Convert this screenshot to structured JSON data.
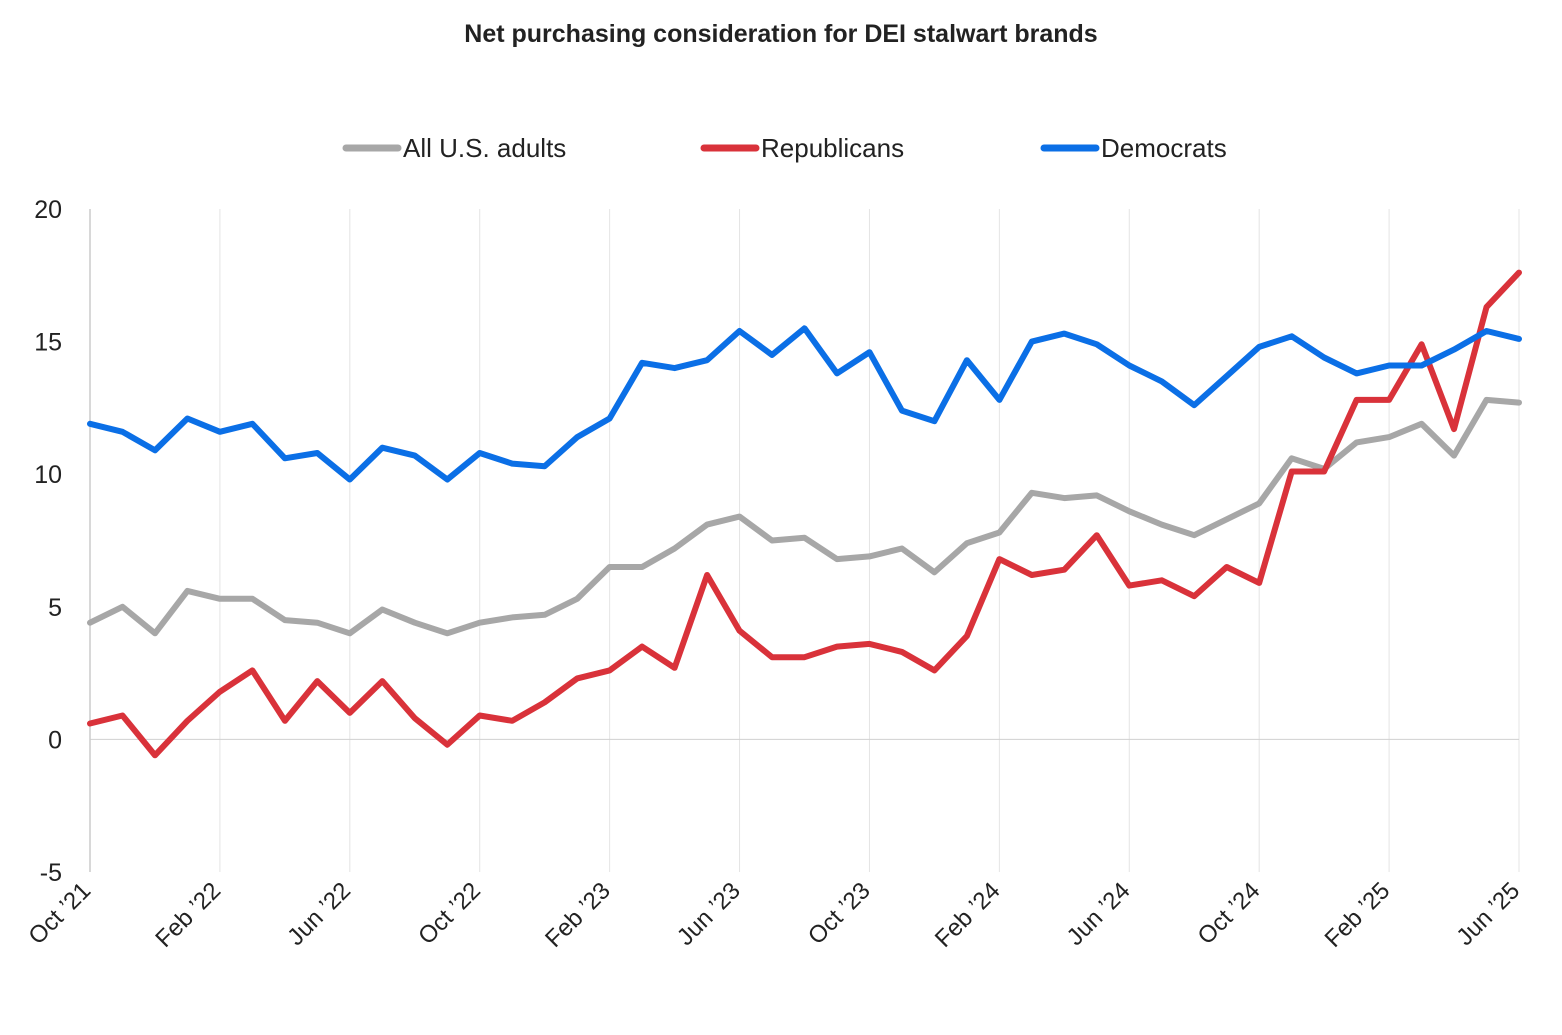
{
  "chart_data": {
    "type": "line",
    "title": "Net purchasing consideration for DEI stalwart brands",
    "xlabel": "",
    "ylabel": "",
    "ylim": [
      -5,
      20
    ],
    "yticks": [
      20,
      15,
      10,
      5,
      0,
      -5
    ],
    "xtick_labels": [
      "Oct ’21",
      "Feb ’22",
      "Jun ’22",
      "Oct ’22",
      "Feb ’23",
      "Jun ’23",
      "Oct ’23",
      "Feb ’24",
      "Jun ’24",
      "Oct ’24",
      "Feb ’25",
      "Jun ’25"
    ],
    "x": [
      "2021-10-01",
      "2021-11-01",
      "2021-12-01",
      "2022-01-01",
      "2022-02-01",
      "2022-03-01",
      "2022-04-01",
      "2022-05-01",
      "2022-06-01",
      "2022-07-01",
      "2022-08-01",
      "2022-09-01",
      "2022-10-01",
      "2022-11-01",
      "2022-12-01",
      "2023-01-01",
      "2023-02-01",
      "2023-03-01",
      "2023-04-01",
      "2023-05-01",
      "2023-06-01",
      "2023-07-01",
      "2023-08-01",
      "2023-09-01",
      "2023-10-01",
      "2023-11-01",
      "2023-12-01",
      "2024-01-01",
      "2024-02-01",
      "2024-03-01",
      "2024-04-01",
      "2024-05-01",
      "2024-06-01",
      "2024-07-01",
      "2024-08-01",
      "2024-09-01",
      "2024-10-01",
      "2024-11-01",
      "2024-12-01",
      "2025-01-01",
      "2025-02-01",
      "2025-03-01",
      "2025-04-01",
      "2025-05-01",
      "2025-06-01"
    ],
    "grid": "vertical",
    "legend_position": "top-center",
    "series": [
      {
        "name": "All U.S. adults",
        "color": "#a7a7a7",
        "values": [
          4.4,
          5.0,
          4.0,
          5.6,
          5.3,
          5.3,
          4.5,
          4.4,
          4.0,
          4.9,
          4.4,
          4.0,
          4.4,
          4.6,
          4.7,
          5.3,
          6.5,
          6.5,
          7.2,
          8.1,
          8.4,
          7.5,
          7.6,
          6.8,
          6.9,
          7.2,
          6.3,
          7.4,
          7.8,
          9.3,
          9.1,
          9.2,
          8.6,
          8.1,
          7.7,
          8.3,
          8.9,
          10.6,
          10.2,
          11.2,
          11.4,
          11.9,
          10.7,
          12.8,
          12.7
        ]
      },
      {
        "name": "Republicans",
        "color": "#d9323a",
        "values": [
          0.6,
          0.9,
          -0.6,
          0.7,
          1.8,
          2.6,
          0.7,
          2.2,
          1.0,
          2.2,
          0.8,
          -0.2,
          0.9,
          0.7,
          1.4,
          2.3,
          2.6,
          3.5,
          2.7,
          6.2,
          4.1,
          3.1,
          3.1,
          3.5,
          3.6,
          3.3,
          2.6,
          3.9,
          6.8,
          6.2,
          6.4,
          7.7,
          5.8,
          6.0,
          5.4,
          6.5,
          5.9,
          10.1,
          10.1,
          12.8,
          12.8,
          14.9,
          11.7,
          16.3,
          17.6
        ]
      },
      {
        "name": "Democrats",
        "color": "#0b6fe6",
        "values": [
          11.9,
          11.6,
          10.9,
          12.1,
          11.6,
          11.9,
          10.6,
          10.8,
          9.8,
          11.0,
          10.7,
          9.8,
          10.8,
          10.4,
          10.3,
          11.4,
          12.1,
          14.2,
          14.0,
          14.3,
          15.4,
          14.5,
          15.5,
          13.8,
          14.6,
          12.4,
          12.0,
          14.3,
          12.8,
          15.0,
          15.3,
          14.9,
          14.1,
          13.5,
          12.6,
          13.7,
          14.8,
          15.2,
          14.4,
          13.8,
          14.1,
          14.1,
          14.7,
          15.4,
          15.1
        ]
      }
    ]
  }
}
